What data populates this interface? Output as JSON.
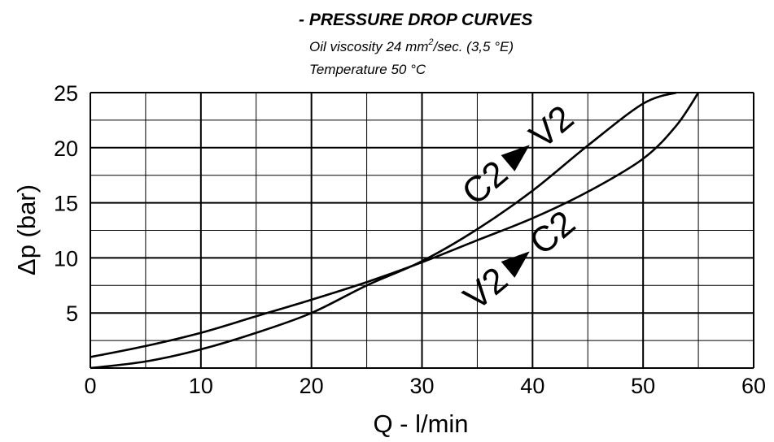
{
  "chart_data": {
    "type": "line",
    "title": "- PRESSURE DROP CURVES",
    "subtitle_viscosity_prefix": "Oil viscosity 24 mm",
    "subtitle_viscosity_sup": "2",
    "subtitle_viscosity_suffix": "/sec. (3,5 °E)",
    "subtitle_temperature": "Temperature 50 °C",
    "xlabel": "Q - l/min",
    "ylabel": "Δp (bar)",
    "xlim": [
      0,
      60
    ],
    "ylim": [
      0,
      25
    ],
    "x_ticks": [
      "0",
      "10",
      "20",
      "30",
      "40",
      "50",
      "60"
    ],
    "y_ticks": [
      "5",
      "10",
      "15",
      "20",
      "25"
    ],
    "grid": true,
    "series": [
      {
        "name": "C2 ▶ V2",
        "label_from": "C2",
        "label_to": "V2",
        "x": [
          0,
          5,
          10,
          15,
          20,
          25,
          30,
          35,
          40,
          45,
          50,
          53
        ],
        "y": [
          0,
          0.6,
          1.7,
          3.2,
          5.0,
          7.5,
          9.7,
          12.6,
          16.1,
          20.2,
          24.0,
          25.0
        ]
      },
      {
        "name": "V2 ▶ C2",
        "label_from": "V2",
        "label_to": "C2",
        "x": [
          0,
          5,
          10,
          15,
          20,
          25,
          30,
          35,
          40,
          45,
          50,
          53,
          55
        ],
        "y": [
          1.0,
          2.0,
          3.2,
          4.7,
          6.2,
          7.8,
          9.6,
          11.6,
          13.6,
          16.0,
          19.0,
          22.0,
          25.0
        ]
      }
    ]
  }
}
